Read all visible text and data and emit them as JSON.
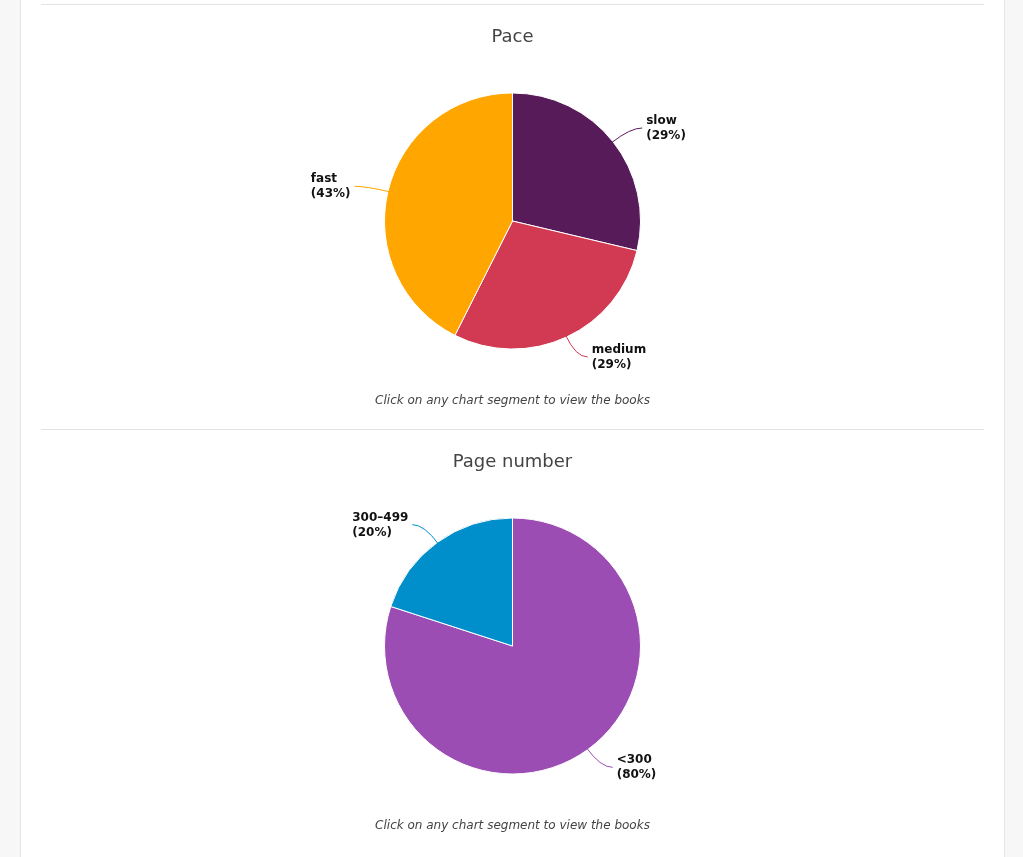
{
  "chart_data": [
    {
      "type": "pie",
      "title": "Pace",
      "categories": [
        "slow",
        "medium",
        "fast"
      ],
      "values": [
        29,
        29,
        43
      ],
      "colors": [
        "#581b5a",
        "#d13a52",
        "#ffa600"
      ],
      "value_labels": [
        "(29%)",
        "(29%)",
        "(43%)"
      ],
      "legend": false,
      "annotations": [
        "Click on any chart segment to view the books"
      ]
    },
    {
      "type": "pie",
      "title": "Page number",
      "categories": [
        "<300",
        "300–499"
      ],
      "values": [
        80,
        20
      ],
      "colors": [
        "#9b4db4",
        "#008fca"
      ],
      "value_labels": [
        "(80%)",
        "(20%)"
      ],
      "legend": false,
      "annotations": [
        "Click on any chart segment to view the books"
      ]
    }
  ]
}
